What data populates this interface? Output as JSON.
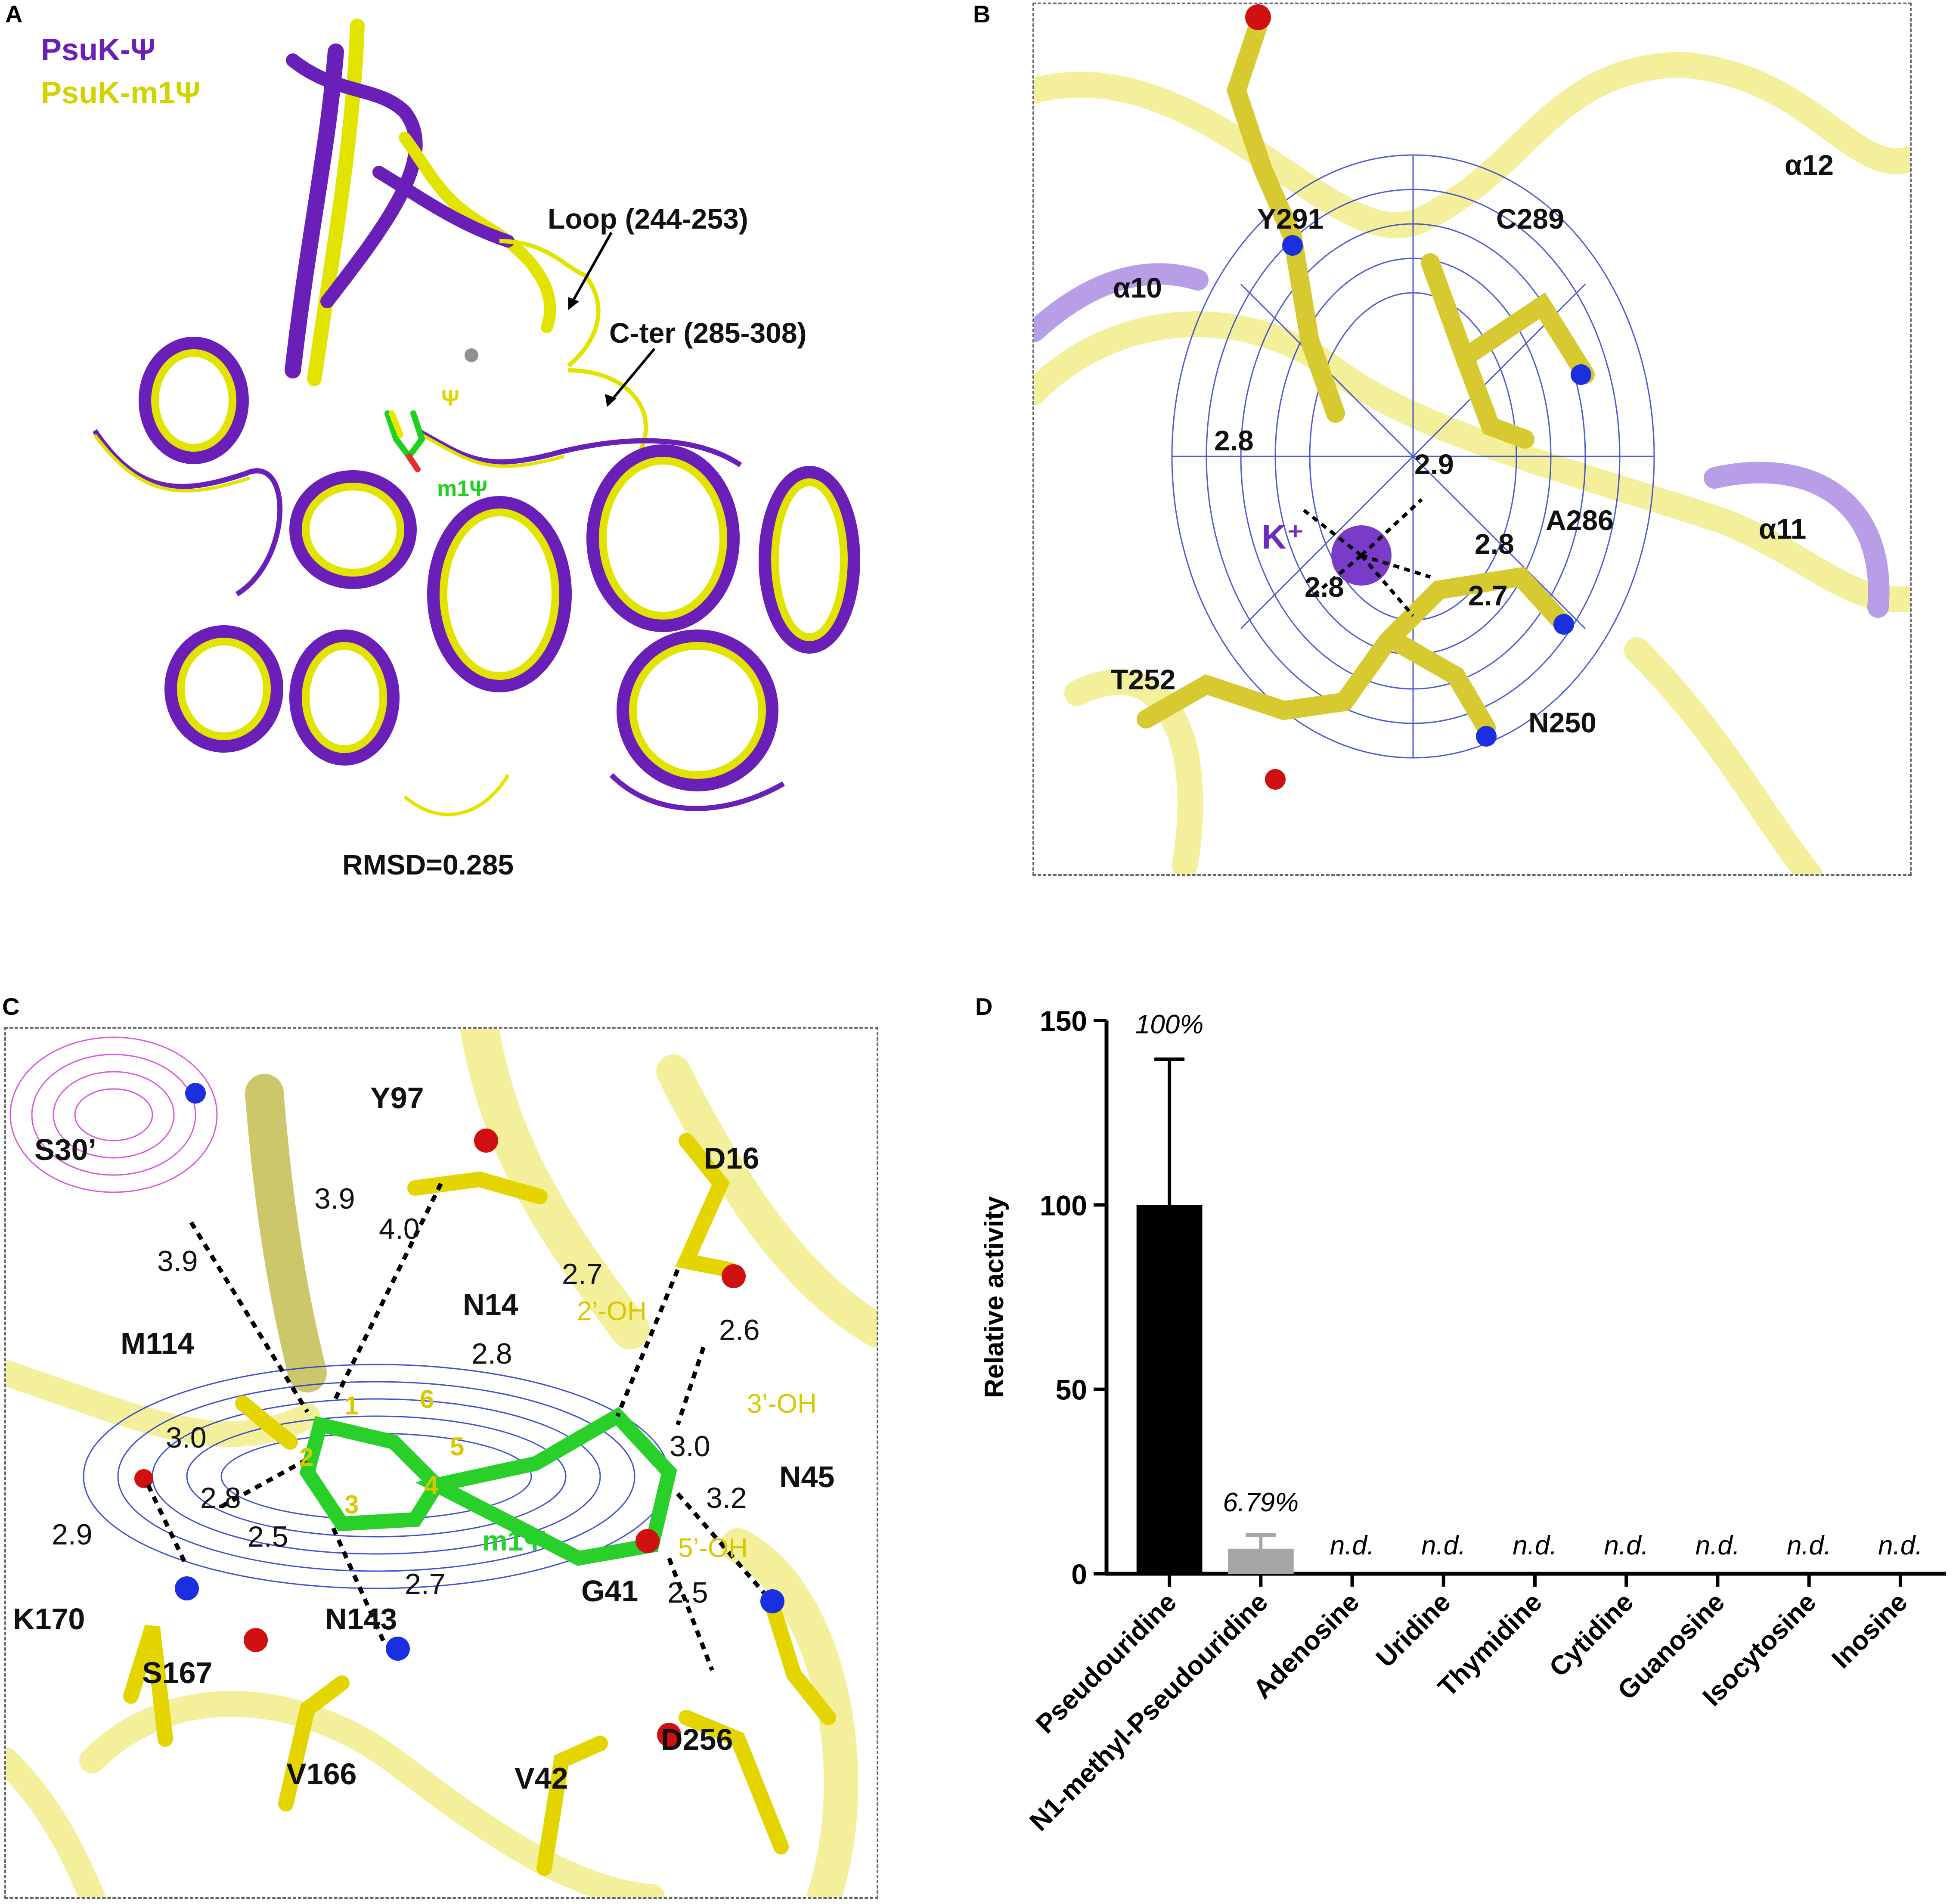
{
  "panels": {
    "A": {
      "letter": "A",
      "legend": [
        {
          "text": "PsuK-Ψ",
          "color": "#6a1fb8"
        },
        {
          "text": "PsuK-m1Ψ",
          "color": "#d8d800"
        }
      ],
      "annotations": {
        "loop": "Loop (244-253)",
        "cter": "C-ter (285-308)",
        "psi": "Ψ",
        "m1psi": "m1Ψ"
      },
      "rmsd": "RMSD=0.285"
    },
    "B": {
      "letter": "B",
      "labels": {
        "y291": "Y291",
        "c289": "C289",
        "a10": "α10",
        "a12": "α12",
        "a11": "α11",
        "a286": "A286",
        "k": "K⁺",
        "t252": "T252",
        "n250": "N250"
      },
      "distances": [
        "2.8",
        "2.9",
        "2.8",
        "2.8",
        "2.7"
      ]
    },
    "C": {
      "letter": "C",
      "labels": {
        "s30": "S30’",
        "y97": "Y97",
        "d16": "D16",
        "n14": "N14",
        "m114": "M114",
        "n45": "N45",
        "k170": "K170",
        "s167": "S167",
        "n143": "N143",
        "g41": "G41",
        "v166": "V166",
        "v42": "V42",
        "d256": "D256",
        "m1psi": "m1Ψ"
      },
      "hydroxyls": {
        "oh2": "2’-OH",
        "oh3": "3’-OH",
        "oh5": "5’-OH"
      },
      "ring_numbers": [
        "1",
        "2",
        "3",
        "4",
        "5",
        "6"
      ],
      "distances": {
        "d39a": "3.9",
        "d39b": "3.9",
        "d40": "4.0",
        "d27a": "2.7",
        "d26": "2.6",
        "d28a": "2.8",
        "d30a": "3.0",
        "d30b": "3.0",
        "d28b": "2.8",
        "d29": "2.9",
        "d25a": "2.5",
        "d27b": "2.7",
        "d32": "3.2",
        "d25b": "2.5"
      }
    },
    "D": {
      "letter": "D"
    }
  },
  "chart_data": {
    "type": "bar",
    "ylabel": "Relative activity",
    "ylim": [
      0,
      150
    ],
    "yticks": [
      0,
      50,
      100,
      150
    ],
    "categories": [
      "Pseudouridine",
      "N1-methyl-Pseudouridine",
      "Adenosine",
      "Uridine",
      "Thymidine",
      "Cytidine",
      "Guanosine",
      "Isocytosine",
      "Inosine"
    ],
    "values": [
      100,
      6.79,
      0,
      0,
      0,
      0,
      0,
      0,
      0
    ],
    "error_upper": [
      139.5,
      10.5,
      null,
      null,
      null,
      null,
      null,
      null,
      null
    ],
    "bar_labels": [
      "100%",
      "6.79%",
      "n.d.",
      "n.d.",
      "n.d.",
      "n.d.",
      "n.d.",
      "n.d.",
      "n.d."
    ],
    "bar_colors": [
      "#000000",
      "#a6a6a6",
      "#000000",
      "#000000",
      "#000000",
      "#000000",
      "#000000",
      "#000000",
      "#000000"
    ]
  }
}
